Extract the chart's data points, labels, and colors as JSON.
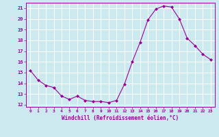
{
  "x": [
    0,
    1,
    2,
    3,
    4,
    5,
    6,
    7,
    8,
    9,
    10,
    11,
    12,
    13,
    14,
    15,
    16,
    17,
    18,
    19,
    20,
    21,
    22,
    23
  ],
  "y": [
    15.2,
    14.3,
    13.8,
    13.6,
    12.8,
    12.5,
    12.8,
    12.4,
    12.3,
    12.3,
    12.2,
    12.4,
    13.9,
    16.0,
    17.8,
    19.9,
    20.9,
    21.2,
    21.1,
    20.0,
    18.2,
    17.5,
    16.7,
    16.2
  ],
  "line_color": "#990099",
  "marker": "D",
  "marker_size": 2,
  "bg_color": "#cce9f0",
  "grid_color": "#ffffff",
  "xlabel": "Windchill (Refroidissement éolien,°C)",
  "tick_color": "#990099",
  "ylim": [
    11.8,
    21.5
  ],
  "yticks": [
    12,
    13,
    14,
    15,
    16,
    17,
    18,
    19,
    20,
    21
  ],
  "xlim": [
    -0.5,
    23.5
  ],
  "xticks": [
    0,
    1,
    2,
    3,
    4,
    5,
    6,
    7,
    8,
    9,
    10,
    11,
    12,
    13,
    14,
    15,
    16,
    17,
    18,
    19,
    20,
    21,
    22,
    23
  ]
}
